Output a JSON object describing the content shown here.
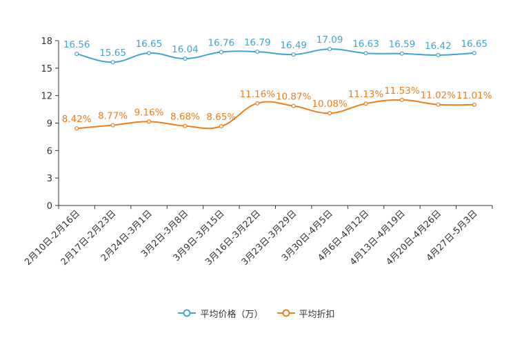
{
  "chart_data": {
    "type": "line",
    "title": "",
    "xlabel": "",
    "ylabel": "",
    "ylim": [
      0,
      18
    ],
    "yticks": [
      "0",
      "3",
      "6",
      "9",
      "12",
      "15",
      "18"
    ],
    "categories": [
      "2月10日-2月16日",
      "2月17日-2月23日",
      "2月24日-3月1日",
      "3月2日-3月8日",
      "3月9日-3月15日",
      "3月16日-3月22日",
      "3月23日-3月29日",
      "3月30日-4月5日",
      "4月6日-4月12日",
      "4月13日-4月19日",
      "4月20日-4月26日",
      "4月27日-5月3日"
    ],
    "series": [
      {
        "name": "平均价格（万）",
        "color": "#3fa3d4",
        "values": [
          16.56,
          15.65,
          16.65,
          16.04,
          16.76,
          16.79,
          16.49,
          17.09,
          16.63,
          16.59,
          16.42,
          16.65
        ],
        "labels": [
          "16.56",
          "15.65",
          "16.65",
          "16.04",
          "16.76",
          "16.79",
          "16.49",
          "17.09",
          "16.63",
          "16.59",
          "16.42",
          "16.65"
        ]
      },
      {
        "name": "平均折扣",
        "color": "#f07c1b",
        "values": [
          8.42,
          8.77,
          9.16,
          8.68,
          8.65,
          11.16,
          10.87,
          10.08,
          11.13,
          11.53,
          11.02,
          11.01
        ],
        "labels": [
          "8.42%",
          "8.77%",
          "9.16%",
          "8.68%",
          "8.65%",
          "11.16%",
          "10.87%",
          "10.08%",
          "11.13%",
          "11.53%",
          "11.02%",
          "11.01%"
        ]
      }
    ],
    "legend_position": "bottom"
  }
}
